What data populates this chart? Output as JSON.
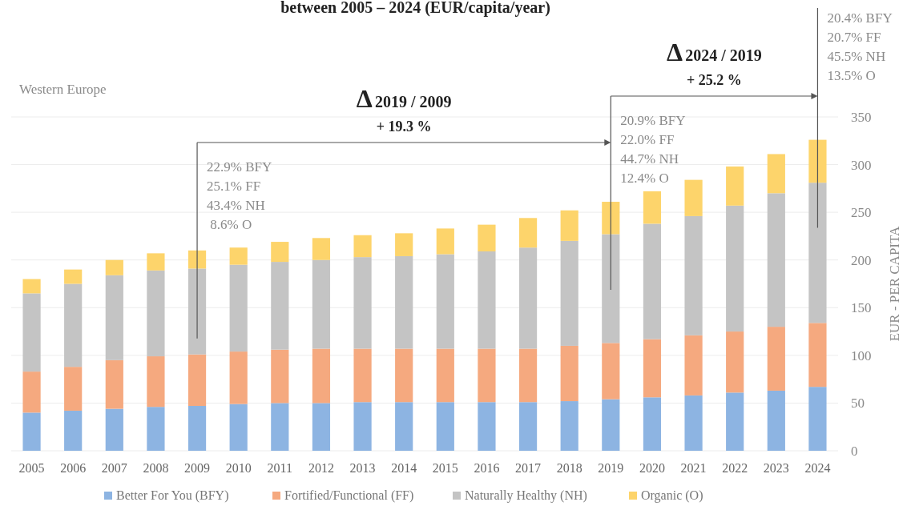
{
  "chart_data": {
    "type": "bar",
    "stacked": true,
    "title": "between 2005 – 2024 (EUR/capita/year)",
    "subtitle": "Western Europe",
    "ylabel": "EUR - PER CAPITA",
    "categories": [
      "2005",
      "2006",
      "2007",
      "2008",
      "2009",
      "2010",
      "2011",
      "2012",
      "2013",
      "2014",
      "2015",
      "2016",
      "2017",
      "2018",
      "2019",
      "2020",
      "2021",
      "2022",
      "2023",
      "2024"
    ],
    "series": [
      {
        "name": "Better For You (BFY)",
        "color": "#8db4e2",
        "values": [
          40,
          42,
          44,
          46,
          47,
          49,
          50,
          50,
          51,
          51,
          51,
          51,
          51,
          52,
          54,
          56,
          58,
          61,
          63,
          67
        ]
      },
      {
        "name": "Fortified/Functional (FF)",
        "color": "#f5a97f",
        "values": [
          43,
          46,
          51,
          53,
          54,
          55,
          56,
          57,
          56,
          56,
          56,
          56,
          56,
          58,
          59,
          61,
          63,
          64,
          67,
          67
        ]
      },
      {
        "name": "Naturally Healthy (NH)",
        "color": "#c4c4c4",
        "values": [
          82,
          87,
          89,
          90,
          90,
          91,
          92,
          93,
          96,
          97,
          99,
          102,
          106,
          110,
          114,
          121,
          125,
          132,
          140,
          147
        ]
      },
      {
        "name": "Organic (O)",
        "color": "#fdd46b",
        "values": [
          15,
          15,
          16,
          18,
          19,
          18,
          21,
          23,
          23,
          24,
          27,
          28,
          31,
          32,
          34,
          34,
          38,
          41,
          41,
          45
        ]
      }
    ],
    "ylim": [
      0,
      350
    ],
    "yticks": [
      0,
      50,
      100,
      150,
      200,
      250,
      300,
      350
    ],
    "grid": "y",
    "legend": "bottom",
    "annotations": [
      "22.9% BFY\n25.1% FF\n43.4% NH\n 8.6% O",
      "20.9% BFY\n22.0% FF\n44.7% NH\n12.4% O",
      "20.4% BFY\n20.7% FF\n45.5% NH\n13.5% O",
      "Δ2019 / 2009\n+ 19.3 %",
      "Δ2024 / 2019\n+ 25.2 %"
    ]
  }
}
